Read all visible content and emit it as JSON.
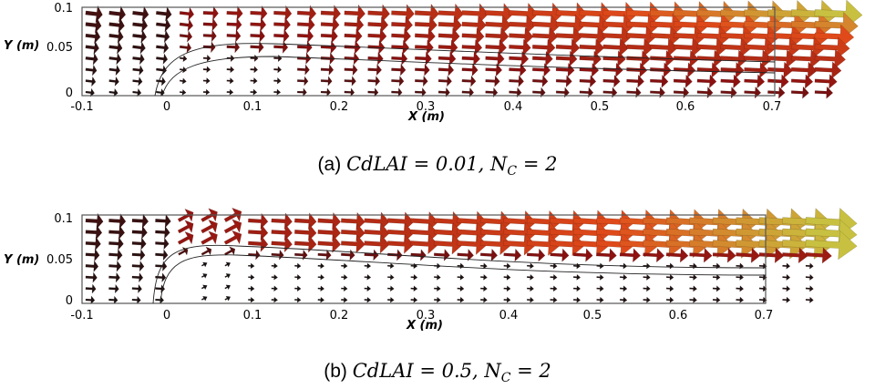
{
  "figure": {
    "panels": [
      {
        "id": "a",
        "caption_prefix": "(a)",
        "caption_math": "CdLAI = 0.01, N",
        "caption_sub": "C",
        "caption_tail": " = 2",
        "x_axis_label": "X (m)",
        "y_axis_label": "Y (m)",
        "x_ticks": [
          "-0.1",
          "0",
          "0.1",
          "0.2",
          "0.3",
          "0.4",
          "0.5",
          "0.6",
          "0.7"
        ],
        "y_ticks": [
          "0.1",
          "0.05",
          "0"
        ]
      },
      {
        "id": "b",
        "caption_prefix": "(b)",
        "caption_math": "CdLAI = 0.5, N",
        "caption_sub": "C",
        "caption_tail": " = 2",
        "x_axis_label": "X (m)",
        "y_axis_label": "Y (m)",
        "x_ticks": [
          "-0.1",
          "0",
          "0.1",
          "0.2",
          "0.3",
          "0.4",
          "0.5",
          "0.6",
          "0.7"
        ],
        "y_ticks": [
          "0.1",
          "0.05",
          "0"
        ]
      }
    ]
  },
  "colors": {
    "arrow_slow": "#111111",
    "arrow_mid": "#8b1010",
    "arrow_fast": "#e04a1a",
    "arrow_peak": "#c8c040",
    "frame": "#555555"
  }
}
